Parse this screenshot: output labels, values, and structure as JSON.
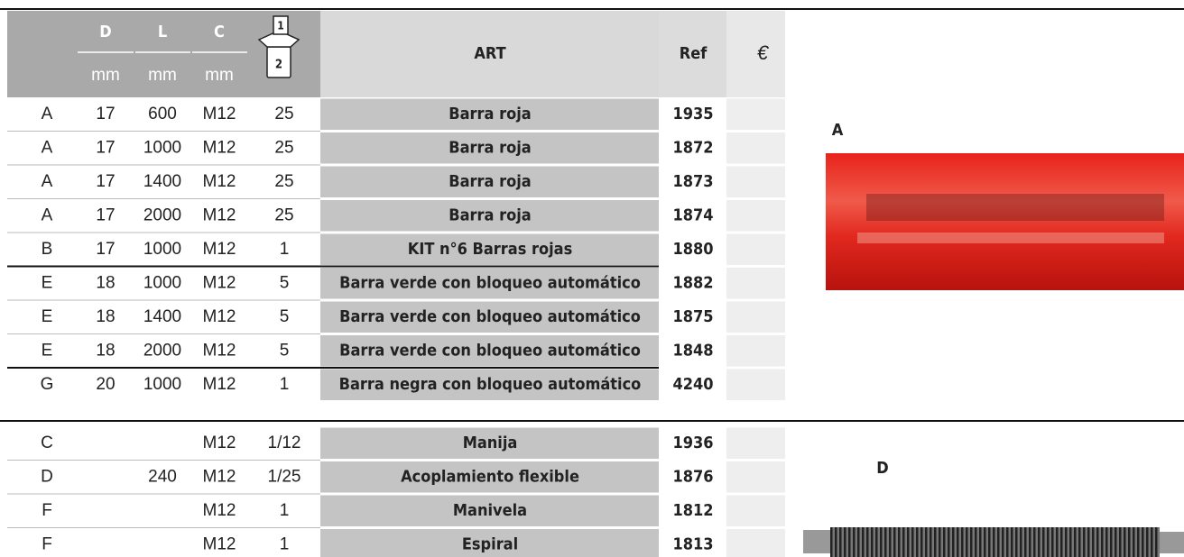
{
  "header": {
    "type_col": null,
    "d": "D",
    "l": "L",
    "c": "C",
    "unit_d": "mm",
    "unit_l": "mm",
    "unit_c": "mm",
    "box_top": "1",
    "box_bottom": "2",
    "art": "ART",
    "ref": "Ref",
    "price": "€"
  },
  "sections": [
    {
      "rows": [
        {
          "type": "A",
          "d": "17",
          "l": "600",
          "c": "M12",
          "pack": "25",
          "art": "Barra roja",
          "ref": "1935",
          "highlight": false
        },
        {
          "type": "A",
          "d": "17",
          "l": "1000",
          "c": "M12",
          "pack": "25",
          "art": "Barra roja",
          "ref": "1872",
          "highlight": true
        },
        {
          "type": "A",
          "d": "17",
          "l": "1400",
          "c": "M12",
          "pack": "25",
          "art": "Barra roja",
          "ref": "1873",
          "highlight": true
        },
        {
          "type": "A",
          "d": "17",
          "l": "2000",
          "c": "M12",
          "pack": "25",
          "art": "Barra roja",
          "ref": "1874",
          "highlight": true
        },
        {
          "type": "B",
          "d": "17",
          "l": "1000",
          "c": "M12",
          "pack": "1",
          "art": "KIT n°6  Barras rojas",
          "ref": "1880",
          "highlight": true,
          "rule_after": true
        },
        {
          "type": "E",
          "d": "18",
          "l": "1000",
          "c": "M12",
          "pack": "5",
          "art": "Barra verde con bloqueo automático",
          "ref": "1882",
          "highlight": true
        },
        {
          "type": "E",
          "d": "18",
          "l": "1400",
          "c": "M12",
          "pack": "5",
          "art": "Barra verde con bloqueo automático",
          "ref": "1875",
          "highlight": true
        },
        {
          "type": "E",
          "d": "18",
          "l": "2000",
          "c": "M12",
          "pack": "5",
          "art": "Barra verde con bloqueo automático",
          "ref": "1848",
          "highlight": true,
          "rule_after": true
        },
        {
          "type": "G",
          "d": "20",
          "l": "1000",
          "c": "M12",
          "pack": "1",
          "art": "Barra negra con bloqueo automático",
          "ref": "4240",
          "highlight": false
        }
      ],
      "image_label": "A"
    },
    {
      "rows": [
        {
          "type": "C",
          "d": null,
          "l": null,
          "c": "M12",
          "pack": "1/12",
          "art": "Manija",
          "ref": "1936",
          "highlight": false
        },
        {
          "type": "D",
          "d": null,
          "l": "240",
          "c": "M12",
          "pack": "1/25",
          "art": "Acoplamiento flexible",
          "ref": "1876",
          "highlight": true
        },
        {
          "type": "F",
          "d": null,
          "l": null,
          "c": "M12",
          "pack": "1",
          "art": "Manivela",
          "ref": "1812",
          "highlight": false
        },
        {
          "type": "F",
          "d": null,
          "l": null,
          "c": "M12",
          "pack": "1",
          "art": "Espiral",
          "ref": "1813",
          "highlight": false
        }
      ],
      "image_label": "D"
    }
  ]
}
